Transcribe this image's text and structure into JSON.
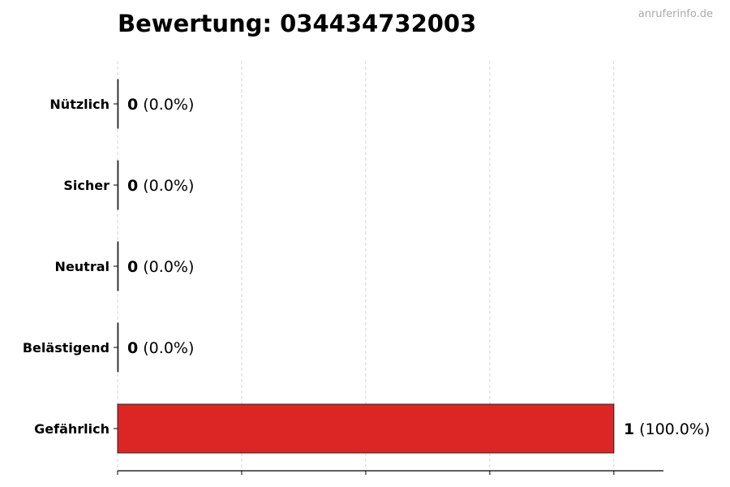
{
  "chart_data": {
    "type": "bar",
    "orientation": "horizontal",
    "title": "Bewertung: 034434732003",
    "categories": [
      "Nützlich",
      "Sicher",
      "Neutral",
      "Belästigend",
      "Gefährlich"
    ],
    "values": [
      0,
      0,
      0,
      0,
      1
    ],
    "data_labels": [
      {
        "count": "0",
        "percent": "(0.0%)"
      },
      {
        "count": "0",
        "percent": "(0.0%)"
      },
      {
        "count": "0",
        "percent": "(0.0%)"
      },
      {
        "count": "0",
        "percent": "(0.0%)"
      },
      {
        "count": "1",
        "percent": "(100.0%)"
      }
    ],
    "bar_color": "#dc2626",
    "xlim": [
      0,
      1.1
    ],
    "xticks": [
      0,
      0.25,
      0.5,
      0.75,
      1.0
    ],
    "xtick_labels_shown": false,
    "grid": "x, dashed",
    "xlabel": "",
    "ylabel": ""
  },
  "watermark": "anruferinfo.de"
}
